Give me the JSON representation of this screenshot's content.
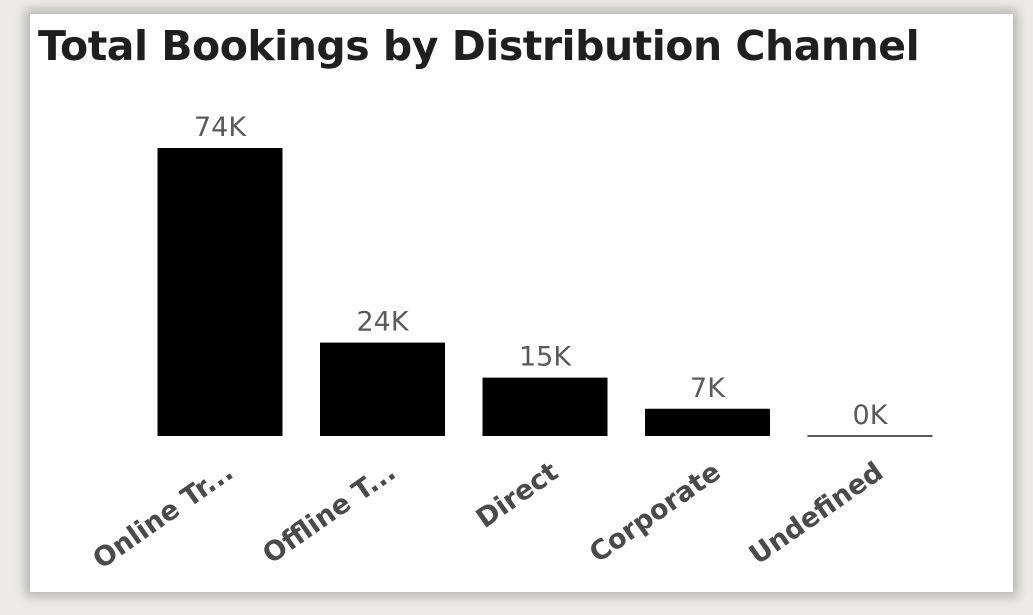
{
  "chart_data": {
    "type": "bar",
    "title": "Total Bookings by Distribution Channel",
    "xlabel": "",
    "ylabel": "",
    "categories": [
      "Online Tr...",
      "Offline T...",
      "Direct",
      "Corporate",
      "Undefined"
    ],
    "values": [
      74000,
      24000,
      15000,
      7000,
      0
    ],
    "data_labels": [
      "74K",
      "24K",
      "15K",
      "7K",
      "0K"
    ],
    "ylim": [
      0,
      74000
    ],
    "grid": false,
    "legend": "none",
    "bar_color": "#000000"
  }
}
